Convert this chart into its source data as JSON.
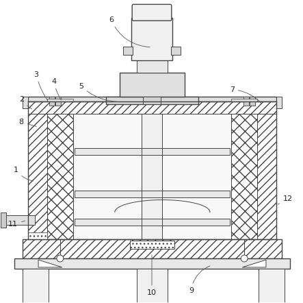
{
  "bg_color": "#ffffff",
  "lc": "#444444",
  "lc2": "#666666",
  "figsize": [
    4.43,
    4.42
  ],
  "dpi": 100
}
